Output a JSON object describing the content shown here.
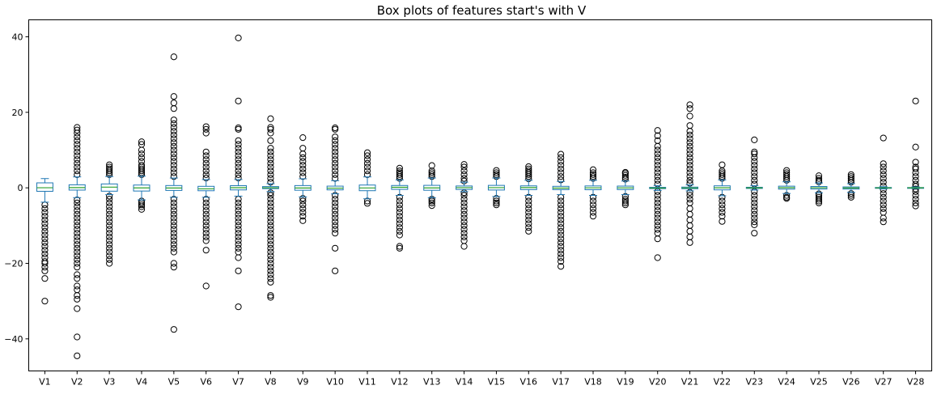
{
  "chart_data": {
    "type": "box",
    "title": "Box plots of features start's with V",
    "xlabel": "",
    "ylabel": "",
    "ylim": [
      -48.5,
      44.5
    ],
    "yticks": [
      -40,
      -20,
      0,
      20,
      40
    ],
    "grid": false,
    "legend": "none",
    "colors": {
      "box": "#1f77b4",
      "median": "#2ca02c",
      "whisker": "#1f77b4",
      "flier": "#000000"
    },
    "categories": [
      "V1",
      "V2",
      "V3",
      "V4",
      "V5",
      "V6",
      "V7",
      "V8",
      "V9",
      "V10",
      "V11",
      "V12",
      "V13",
      "V14",
      "V15",
      "V16",
      "V17",
      "V18",
      "V19",
      "V20",
      "V21",
      "V22",
      "V23",
      "V24",
      "V25",
      "V26",
      "V27",
      "V28"
    ],
    "boxes": [
      {
        "q1": -0.92,
        "median": 0.02,
        "q3": 1.32,
        "whislo": -3.8,
        "whishi": 2.45,
        "outliers": [
          -30.0,
          -24.0,
          -22.0,
          -21.0,
          -20.0,
          -19.5,
          -18.5,
          -17.5,
          -16.5,
          -15.5,
          -14.5,
          -13.5,
          -12.5,
          -11.5,
          -10.5,
          -9.5,
          -8.5,
          -7.5,
          -6.5,
          -5.5,
          -4.5
        ]
      },
      {
        "q1": -0.6,
        "median": 0.07,
        "q3": 0.8,
        "whislo": -2.6,
        "whishi": 2.9,
        "outliers": [
          -44.5,
          -39.5,
          -32.0,
          -29.5,
          -28.5,
          -27.0,
          -26.0,
          -24.0,
          -23.0,
          -21.0,
          -20.0,
          -19.0,
          -18.0,
          -17.0,
          -16.0,
          -15.0,
          -14.0,
          -13.0,
          -12.0,
          -11.0,
          -10.0,
          -9.0,
          -8.0,
          -7.0,
          -6.0,
          -5.0,
          -4.0,
          -3.2,
          3.5,
          4.5,
          5.5,
          6.5,
          7.5,
          8.5,
          9.5,
          10.5,
          11.5,
          12.5,
          13.5,
          14.5,
          15.3,
          16.0
        ]
      },
      {
        "q1": -0.89,
        "median": 0.18,
        "q3": 1.03,
        "whislo": -1.8,
        "whishi": 3.0,
        "outliers": [
          -20.0,
          -19.0,
          -18.0,
          -17.0,
          -16.0,
          -15.0,
          -14.0,
          -13.0,
          -12.0,
          -11.0,
          -10.0,
          -9.0,
          -8.0,
          -7.0,
          -6.0,
          -5.0,
          -4.0,
          -3.0,
          -2.2,
          3.5,
          4.0,
          4.5,
          5.0,
          5.5,
          6.1
        ]
      },
      {
        "q1": -0.85,
        "median": -0.02,
        "q3": 0.74,
        "whislo": -3.2,
        "whishi": 3.1,
        "outliers": [
          -5.7,
          -5.0,
          -4.5,
          -4.0,
          -3.5,
          3.5,
          4.0,
          4.5,
          5.0,
          5.5,
          6.0,
          7.0,
          8.0,
          9.0,
          10.0,
          11.5,
          12.2
        ]
      },
      {
        "q1": -0.69,
        "median": -0.05,
        "q3": 0.61,
        "whislo": -2.5,
        "whishi": 2.6,
        "outliers": [
          -37.5,
          -21.0,
          -20.0,
          -17.0,
          -16.0,
          -15.0,
          -14.0,
          -13.0,
          -12.0,
          -11.0,
          -10.0,
          -9.0,
          -8.0,
          -7.0,
          -6.0,
          -5.0,
          -4.0,
          -3.0,
          3.0,
          4.0,
          5.0,
          6.0,
          7.0,
          8.0,
          9.0,
          10.0,
          11.0,
          12.0,
          13.0,
          14.0,
          15.0,
          16.0,
          17.0,
          18.0,
          21.0,
          22.5,
          24.2,
          34.7
        ]
      },
      {
        "q1": -0.77,
        "median": -0.27,
        "q3": 0.4,
        "whislo": -2.5,
        "whishi": 2.2,
        "outliers": [
          -26.0,
          -16.5,
          -14.0,
          -13.0,
          -12.0,
          -11.0,
          -10.0,
          -9.0,
          -8.0,
          -7.0,
          -6.0,
          -5.0,
          -4.0,
          -3.0,
          2.6,
          3.5,
          4.5,
          5.5,
          6.5,
          7.5,
          8.5,
          9.5,
          14.5,
          15.5,
          16.2
        ]
      },
      {
        "q1": -0.55,
        "median": 0.04,
        "q3": 0.57,
        "whislo": -2.2,
        "whishi": 2.2,
        "outliers": [
          -31.5,
          -22.0,
          -18.5,
          -17.0,
          -16.0,
          -15.0,
          -14.0,
          -13.0,
          -12.0,
          -11.0,
          -10.0,
          -9.0,
          -8.0,
          -7.0,
          -6.0,
          -5.0,
          -4.0,
          -3.0,
          2.6,
          3.5,
          4.5,
          5.5,
          6.5,
          7.5,
          8.5,
          9.5,
          10.5,
          11.5,
          12.5,
          15.5,
          15.9,
          23.0,
          39.7
        ]
      },
      {
        "q1": -0.21,
        "median": 0.02,
        "q3": 0.33,
        "whislo": -1.0,
        "whishi": 1.1,
        "outliers": [
          -29.0,
          -28.5,
          -25.0,
          -24.0,
          -23.0,
          -22.0,
          -21.0,
          -20.0,
          -19.0,
          -18.0,
          -17.0,
          -16.0,
          -15.0,
          -14.0,
          -13.0,
          -12.0,
          -11.0,
          -10.0,
          -9.0,
          -8.0,
          -7.0,
          -6.0,
          -5.0,
          -4.0,
          -3.0,
          -2.0,
          -1.3,
          1.5,
          2.5,
          3.5,
          4.5,
          5.5,
          6.5,
          7.5,
          8.5,
          9.5,
          10.5,
          12.5,
          14.5,
          15.5,
          16.0,
          18.3
        ]
      },
      {
        "q1": -0.64,
        "median": -0.05,
        "q3": 0.6,
        "whislo": -2.4,
        "whishi": 2.4,
        "outliers": [
          -8.7,
          -7.5,
          -6.5,
          -5.5,
          -4.5,
          -3.5,
          -2.8,
          3.0,
          4.0,
          5.0,
          6.0,
          7.0,
          8.0,
          9.0,
          10.5,
          13.3
        ]
      },
      {
        "q1": -0.54,
        "median": -0.09,
        "q3": 0.45,
        "whislo": -1.6,
        "whishi": 1.9,
        "outliers": [
          -22.0,
          -16.0,
          -12.0,
          -11.0,
          -10.0,
          -9.0,
          -8.0,
          -7.0,
          -6.0,
          -5.0,
          -4.0,
          -3.0,
          -2.0,
          2.5,
          3.5,
          4.5,
          5.5,
          6.5,
          7.5,
          8.5,
          9.5,
          10.5,
          11.5,
          12.5,
          13.5,
          15.5,
          15.9
        ]
      },
      {
        "q1": -0.76,
        "median": -0.03,
        "q3": 0.74,
        "whislo": -2.9,
        "whishi": 2.9,
        "outliers": [
          -4.1,
          -3.5,
          3.5,
          4.5,
          5.5,
          6.5,
          7.5,
          8.5,
          9.3
        ]
      },
      {
        "q1": -0.41,
        "median": 0.14,
        "q3": 0.62,
        "whislo": -2.0,
        "whishi": 2.1,
        "outliers": [
          -16.0,
          -15.5,
          -12.5,
          -11.5,
          -10.5,
          -9.5,
          -8.5,
          -7.5,
          -6.5,
          -5.5,
          -4.5,
          -3.5,
          -2.5,
          2.5,
          3.0,
          3.5,
          4.0,
          4.5,
          5.2
        ]
      },
      {
        "q1": -0.65,
        "median": -0.01,
        "q3": 0.66,
        "whislo": -2.6,
        "whishi": 2.6,
        "outliers": [
          -4.7,
          -4.0,
          -3.5,
          -3.0,
          3.0,
          3.5,
          4.0,
          4.5,
          5.9
        ]
      },
      {
        "q1": -0.43,
        "median": 0.05,
        "q3": 0.49,
        "whislo": -1.0,
        "whishi": 1.5,
        "outliers": [
          -15.5,
          -14.0,
          -13.0,
          -12.0,
          -11.0,
          -10.0,
          -9.0,
          -8.0,
          -7.0,
          -6.0,
          -5.0,
          -4.0,
          -3.0,
          -2.0,
          -1.3,
          1.8,
          2.5,
          3.5,
          4.5,
          5.5,
          6.2
        ]
      },
      {
        "q1": -0.58,
        "median": 0.05,
        "q3": 0.65,
        "whislo": -2.3,
        "whishi": 2.6,
        "outliers": [
          -4.5,
          -4.0,
          -3.5,
          -2.8,
          3.0,
          3.5,
          4.0,
          4.6
        ]
      },
      {
        "q1": -0.47,
        "median": 0.07,
        "q3": 0.52,
        "whislo": -2.0,
        "whishi": 2.0,
        "outliers": [
          -11.5,
          -10.5,
          -9.5,
          -8.5,
          -7.5,
          -6.5,
          -5.5,
          -4.5,
          -3.5,
          -2.5,
          2.4,
          3.0,
          3.5,
          4.0,
          4.5,
          5.0,
          5.6
        ]
      },
      {
        "q1": -0.48,
        "median": -0.07,
        "q3": 0.4,
        "whislo": -1.8,
        "whishi": 1.7,
        "outliers": [
          -20.8,
          -19.5,
          -18.5,
          -17.5,
          -16.5,
          -15.5,
          -14.5,
          -13.5,
          -12.5,
          -11.5,
          -10.5,
          -9.5,
          -8.5,
          -7.5,
          -6.5,
          -5.5,
          -4.5,
          -3.5,
          -2.5,
          2.1,
          3.0,
          4.0,
          5.0,
          6.0,
          7.0,
          8.0,
          8.9
        ]
      },
      {
        "q1": -0.5,
        "median": 0.0,
        "q3": 0.5,
        "whislo": -2.0,
        "whishi": 2.0,
        "outliers": [
          -7.5,
          -6.5,
          -5.5,
          -4.5,
          -3.5,
          -2.5,
          2.5,
          3.0,
          3.5,
          4.0,
          4.8
        ]
      },
      {
        "q1": -0.46,
        "median": 0.0,
        "q3": 0.46,
        "whislo": -1.8,
        "whishi": 1.8,
        "outliers": [
          -4.5,
          -4.0,
          -3.5,
          -3.0,
          -2.3,
          2.3,
          2.8,
          3.3,
          3.8,
          4.1
        ]
      },
      {
        "q1": -0.21,
        "median": -0.06,
        "q3": 0.13,
        "whislo": -0.7,
        "whishi": 0.6,
        "outliers": [
          -18.5,
          -13.5,
          -12.0,
          -11.0,
          -10.0,
          -9.0,
          -8.0,
          -7.0,
          -6.0,
          -5.0,
          -4.0,
          -3.0,
          -2.0,
          -1.0,
          1.0,
          2.0,
          3.0,
          4.0,
          5.0,
          6.0,
          7.0,
          8.0,
          9.0,
          10.0,
          11.0,
          12.5,
          13.8,
          15.2
        ]
      },
      {
        "q1": -0.23,
        "median": -0.03,
        "q3": 0.19,
        "whislo": -0.8,
        "whishi": 0.8,
        "outliers": [
          -14.5,
          -13.0,
          -11.5,
          -10.0,
          -8.5,
          -7.0,
          -5.5,
          -4.0,
          -3.0,
          -2.0,
          -1.2,
          1.2,
          2.0,
          3.0,
          4.0,
          5.0,
          6.0,
          7.0,
          8.0,
          9.0,
          10.0,
          11.0,
          12.0,
          13.0,
          14.0,
          15.0,
          16.5,
          19.0,
          21.0,
          22.0
        ]
      },
      {
        "q1": -0.54,
        "median": 0.01,
        "q3": 0.53,
        "whislo": -2.1,
        "whishi": 2.1,
        "outliers": [
          -8.9,
          -7.5,
          -6.5,
          -5.5,
          -4.5,
          -3.5,
          -2.5,
          2.5,
          3.0,
          3.5,
          4.0,
          4.5,
          6.1
        ]
      },
      {
        "q1": -0.16,
        "median": -0.01,
        "q3": 0.15,
        "whislo": -0.6,
        "whishi": 0.6,
        "outliers": [
          -12.0,
          -9.8,
          -9.0,
          -8.0,
          -7.0,
          -6.0,
          -5.0,
          -4.0,
          -3.0,
          -2.0,
          -1.0,
          1.0,
          2.0,
          3.0,
          4.0,
          5.0,
          6.0,
          7.0,
          8.0,
          9.0,
          9.5,
          12.7
        ]
      },
      {
        "q1": -0.35,
        "median": 0.04,
        "q3": 0.44,
        "whislo": -1.5,
        "whishi": 1.6,
        "outliers": [
          -2.8,
          -2.5,
          -2.0,
          2.0,
          2.5,
          3.0,
          3.5,
          4.0,
          4.6
        ]
      },
      {
        "q1": -0.32,
        "median": 0.02,
        "q3": 0.35,
        "whislo": -1.3,
        "whishi": 1.3,
        "outliers": [
          -4.0,
          -3.5,
          -3.0,
          -2.5,
          -2.0,
          -1.6,
          1.6,
          2.0,
          2.5,
          3.2
        ]
      },
      {
        "q1": -0.33,
        "median": -0.05,
        "q3": 0.24,
        "whislo": -1.2,
        "whishi": 1.1,
        "outliers": [
          -2.5,
          -2.0,
          -1.5,
          1.5,
          2.0,
          2.5,
          3.0,
          3.5
        ]
      },
      {
        "q1": -0.07,
        "median": 0.0,
        "q3": 0.09,
        "whislo": -0.3,
        "whishi": 0.3,
        "outliers": [
          -9.0,
          -8.0,
          -6.5,
          -5.5,
          -4.5,
          -3.5,
          -2.5,
          -1.5,
          -0.5,
          0.5,
          1.5,
          2.5,
          3.5,
          4.5,
          5.5,
          6.4,
          13.2
        ]
      },
      {
        "q1": -0.05,
        "median": 0.01,
        "q3": 0.08,
        "whislo": -0.2,
        "whishi": 0.25,
        "outliers": [
          -4.8,
          -4.0,
          -3.0,
          -2.0,
          -1.0,
          -0.3,
          0.4,
          1.0,
          2.0,
          3.0,
          4.0,
          5.0,
          5.5,
          6.8,
          10.8,
          23.0
        ]
      }
    ]
  }
}
